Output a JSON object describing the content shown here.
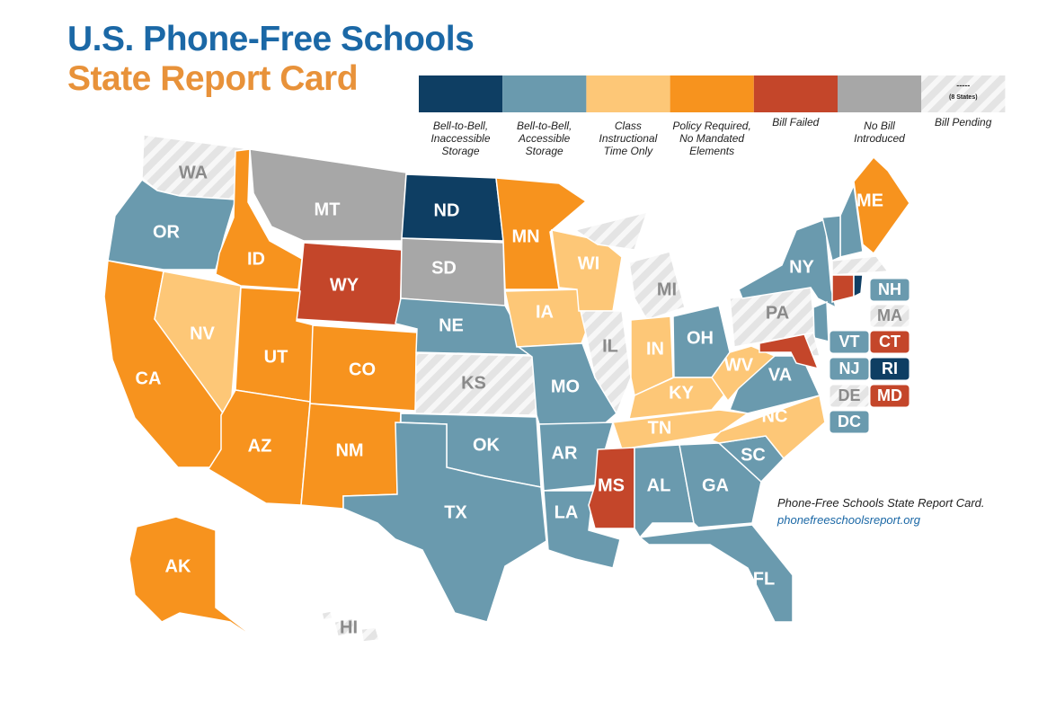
{
  "header": {
    "title": "U.S. Phone-Free Schools",
    "subtitle": "State Report Card"
  },
  "legend": [
    {
      "label": "Bell-to-Bell, Inaccessible Storage",
      "color": "#0e3e63"
    },
    {
      "label": "Bell-to-Bell, Accessible Storage",
      "color": "#6a9aae"
    },
    {
      "label": "Class Instructional Time Only",
      "color": "#fdc777"
    },
    {
      "label": "Policy Required, No Mandated Elements",
      "color": "#f7931e"
    },
    {
      "label": "Bill Failed",
      "color": "#c4462a"
    },
    {
      "label": "No Bill Introduced",
      "color": "#a7a7a7"
    },
    {
      "label": "Bill Pending",
      "pattern": "hatch",
      "swatch_text": [
        "-----",
        "(8 States)"
      ]
    }
  ],
  "states": [
    {
      "abbr": "WA",
      "category": "Bill Pending"
    },
    {
      "abbr": "OR",
      "category": "Bell-to-Bell, Accessible Storage"
    },
    {
      "abbr": "CA",
      "category": "Policy Required, No Mandated Elements"
    },
    {
      "abbr": "NV",
      "category": "Class Instructional Time Only"
    },
    {
      "abbr": "ID",
      "category": "Policy Required, No Mandated Elements"
    },
    {
      "abbr": "MT",
      "category": "No Bill Introduced"
    },
    {
      "abbr": "WY",
      "category": "Bill Failed"
    },
    {
      "abbr": "UT",
      "category": "Policy Required, No Mandated Elements"
    },
    {
      "abbr": "CO",
      "category": "Policy Required, No Mandated Elements"
    },
    {
      "abbr": "AZ",
      "category": "Policy Required, No Mandated Elements"
    },
    {
      "abbr": "NM",
      "category": "Policy Required, No Mandated Elements"
    },
    {
      "abbr": "ND",
      "category": "Bell-to-Bell, Inaccessible Storage"
    },
    {
      "abbr": "SD",
      "category": "No Bill Introduced"
    },
    {
      "abbr": "NE",
      "category": "Bell-to-Bell, Accessible Storage"
    },
    {
      "abbr": "KS",
      "category": "Bill Pending"
    },
    {
      "abbr": "OK",
      "category": "Bell-to-Bell, Accessible Storage"
    },
    {
      "abbr": "TX",
      "category": "Bell-to-Bell, Accessible Storage"
    },
    {
      "abbr": "MN",
      "category": "Policy Required, No Mandated Elements"
    },
    {
      "abbr": "IA",
      "category": "Class Instructional Time Only"
    },
    {
      "abbr": "MO",
      "category": "Bell-to-Bell, Accessible Storage"
    },
    {
      "abbr": "AR",
      "category": "Bell-to-Bell, Accessible Storage"
    },
    {
      "abbr": "LA",
      "category": "Bell-to-Bell, Accessible Storage"
    },
    {
      "abbr": "WI",
      "category": "Class Instructional Time Only"
    },
    {
      "abbr": "IL",
      "category": "Bill Pending"
    },
    {
      "abbr": "MI",
      "category": "Bill Pending"
    },
    {
      "abbr": "IN",
      "category": "Class Instructional Time Only"
    },
    {
      "abbr": "OH",
      "category": "Bell-to-Bell, Accessible Storage"
    },
    {
      "abbr": "KY",
      "category": "Class Instructional Time Only"
    },
    {
      "abbr": "TN",
      "category": "Class Instructional Time Only"
    },
    {
      "abbr": "MS",
      "category": "Bill Failed"
    },
    {
      "abbr": "AL",
      "category": "Bell-to-Bell, Accessible Storage"
    },
    {
      "abbr": "GA",
      "category": "Bell-to-Bell, Accessible Storage"
    },
    {
      "abbr": "FL",
      "category": "Bell-to-Bell, Accessible Storage"
    },
    {
      "abbr": "SC",
      "category": "Bell-to-Bell, Accessible Storage"
    },
    {
      "abbr": "NC",
      "category": "Class Instructional Time Only"
    },
    {
      "abbr": "VA",
      "category": "Bell-to-Bell, Accessible Storage"
    },
    {
      "abbr": "WV",
      "category": "Class Instructional Time Only"
    },
    {
      "abbr": "PA",
      "category": "Bill Pending"
    },
    {
      "abbr": "NY",
      "category": "Bell-to-Bell, Accessible Storage"
    },
    {
      "abbr": "ME",
      "category": "Policy Required, No Mandated Elements"
    },
    {
      "abbr": "AK",
      "category": "Policy Required, No Mandated Elements"
    },
    {
      "abbr": "HI",
      "category": "Bill Pending"
    }
  ],
  "insets": [
    {
      "abbr": "NH",
      "category": "Bell-to-Bell, Accessible Storage"
    },
    {
      "abbr": "MA",
      "category": "Bill Pending"
    },
    {
      "abbr": "VT",
      "category": "Bell-to-Bell, Accessible Storage"
    },
    {
      "abbr": "CT",
      "category": "Bill Failed"
    },
    {
      "abbr": "NJ",
      "category": "Bell-to-Bell, Accessible Storage"
    },
    {
      "abbr": "RI",
      "category": "Bell-to-Bell, Inaccessible Storage"
    },
    {
      "abbr": "DE",
      "category": "Bill Pending"
    },
    {
      "abbr": "MD",
      "category": "Bill Failed"
    },
    {
      "abbr": "DC",
      "category": "Bell-to-Bell, Accessible Storage"
    }
  ],
  "source": {
    "text": "Phone-Free Schools State Report Card.",
    "url": "phonefreeschoolsreport.org"
  }
}
